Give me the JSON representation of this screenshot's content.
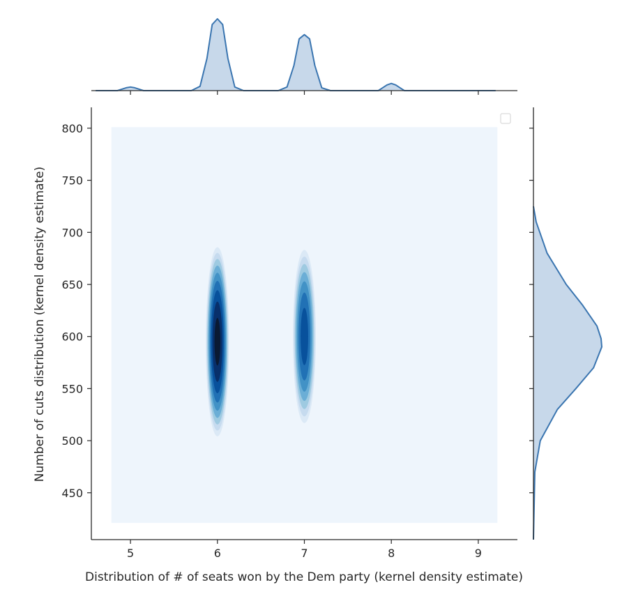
{
  "chart_data": {
    "type": "heatmap",
    "subtype": "jointplot-kde",
    "xlabel": "Distribution of # of seats won by the Dem party (kernel density estimate)",
    "ylabel": "Number of cuts distribution (kernel density estimate)",
    "xticks": [
      5,
      6,
      7,
      8,
      9
    ],
    "yticks": [
      450,
      500,
      550,
      600,
      650,
      700,
      750,
      800
    ],
    "xlim": [
      4.55,
      9.45
    ],
    "ylim": [
      405,
      820
    ],
    "kde_extent": {
      "x": [
        4.78,
        9.22
      ],
      "y": [
        421,
        801
      ]
    },
    "joint_density_peaks": [
      {
        "x": 6,
        "y": 595,
        "half_width_x": 0.14,
        "half_height_y": 95,
        "peak_level": 1.0
      },
      {
        "x": 7,
        "y": 600,
        "half_width_x": 0.14,
        "half_height_y": 88,
        "peak_level": 0.8
      },
      {
        "x": 8,
        "y": 608,
        "half_width_x": 0.02,
        "half_height_y": 12,
        "peak_level": 0.08
      }
    ],
    "marginal_x": {
      "x": [
        4.6,
        4.85,
        4.95,
        5.0,
        5.05,
        5.15,
        5.5,
        5.7,
        5.8,
        5.88,
        5.94,
        6.0,
        6.06,
        6.12,
        6.2,
        6.3,
        6.5,
        6.7,
        6.8,
        6.88,
        6.94,
        7.0,
        7.06,
        7.12,
        7.2,
        7.3,
        7.6,
        7.85,
        7.95,
        8.0,
        8.05,
        8.15,
        8.5,
        9.2
      ],
      "density": [
        0.0,
        0.0,
        0.04,
        0.05,
        0.04,
        0.0,
        0.0,
        0.0,
        0.06,
        0.45,
        0.92,
        1.0,
        0.92,
        0.45,
        0.05,
        0.0,
        0.0,
        0.0,
        0.05,
        0.35,
        0.72,
        0.78,
        0.72,
        0.35,
        0.04,
        0.0,
        0.0,
        0.0,
        0.08,
        0.1,
        0.08,
        0.0,
        0.0,
        0.0
      ]
    },
    "marginal_y": {
      "y": [
        400,
        470,
        500,
        530,
        550,
        570,
        590,
        598,
        610,
        630,
        650,
        680,
        710,
        725
      ],
      "density": [
        0.0,
        0.02,
        0.1,
        0.35,
        0.62,
        0.88,
        1.0,
        0.99,
        0.93,
        0.72,
        0.48,
        0.2,
        0.04,
        0.0
      ]
    },
    "grid": false,
    "legend": "top-right (empty)",
    "colors": {
      "joint_cmap": [
        "#eef5fc",
        "#dbe9f6",
        "#c6dbef",
        "#9ecae1",
        "#6baed6",
        "#4292c6",
        "#2171b5",
        "#08519c",
        "#08306b",
        "#0a1a33"
      ],
      "marginal_line": "#3a75b0",
      "marginal_fill": "#c7d8ea",
      "axis": "#262626"
    }
  }
}
